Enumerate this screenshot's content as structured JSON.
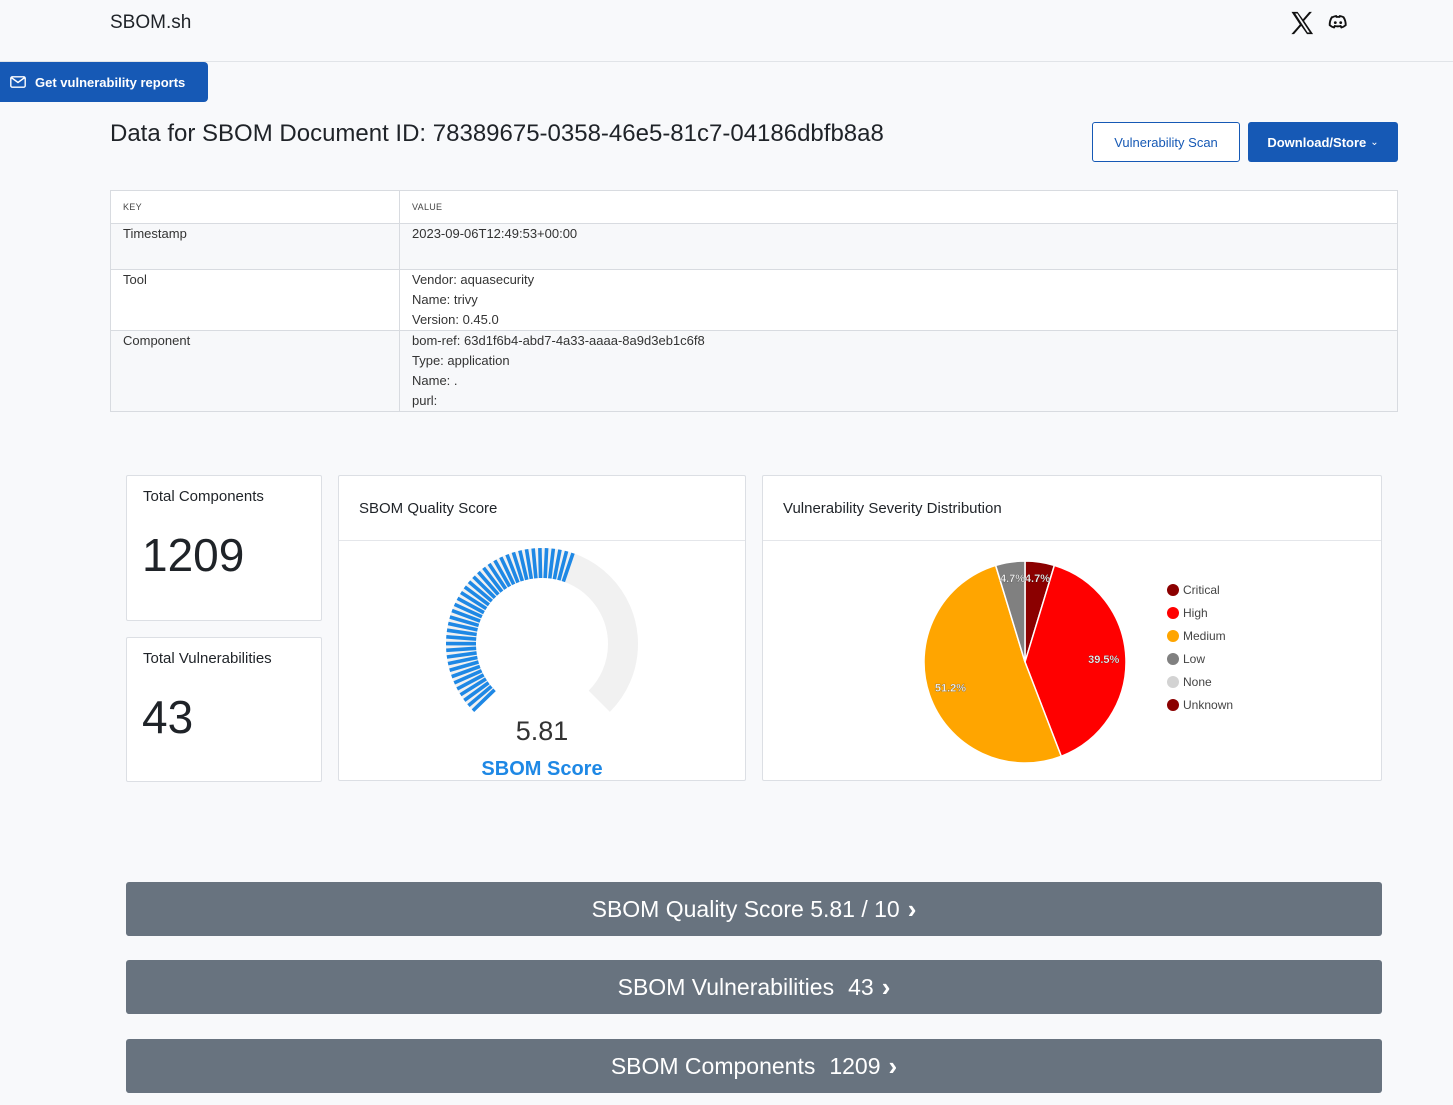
{
  "header": {
    "brand": "SBOM.sh"
  },
  "actions": {
    "get_reports": "Get vulnerability reports",
    "vuln_scan": "Vulnerability Scan",
    "download_store": "Download/Store"
  },
  "page": {
    "title": "Data for SBOM Document ID: 78389675-0358-46e5-81c7-04186dbfb8a8"
  },
  "table": {
    "key_header": "KEY",
    "value_header": "VALUE",
    "rows": [
      {
        "key": "Timestamp",
        "lines": [
          "2023-09-06T12:49:53+00:00"
        ]
      },
      {
        "key": "Tool",
        "lines": [
          "Vendor: aquasecurity",
          "Name: trivy",
          "Version: 0.45.0"
        ]
      },
      {
        "key": "Component",
        "lines": [
          "bom-ref: 63d1f6b4-abd7-4a33-aaaa-8a9d3eb1c6f8",
          "Type: application",
          "Name: .",
          "purl:"
        ]
      }
    ]
  },
  "stats": {
    "components_label": "Total Components",
    "components_value": "1209",
    "vulns_label": "Total Vulnerabilities",
    "vulns_value": "43"
  },
  "quality": {
    "title": "SBOM Quality Score",
    "score": "5.81",
    "score_fraction": 0.581,
    "label": "SBOM Score",
    "accent": "#1e88e5",
    "track": "#f1f1f1"
  },
  "severity": {
    "title": "Vulnerability Severity Distribution",
    "legend": [
      {
        "name": "Critical",
        "color": "#8b0000"
      },
      {
        "name": "High",
        "color": "#ff0000"
      },
      {
        "name": "Medium",
        "color": "#ffa500"
      },
      {
        "name": "Low",
        "color": "#808080"
      },
      {
        "name": "None",
        "color": "#d3d3d3"
      },
      {
        "name": "Unknown",
        "color": "#8b0000"
      }
    ]
  },
  "chart_data": {
    "type": "pie",
    "title": "Vulnerability Severity Distribution",
    "slices": [
      {
        "name": "Critical",
        "value": 4.7,
        "label": "4.7%",
        "color": "#8b0000"
      },
      {
        "name": "High",
        "value": 39.5,
        "label": "39.5%",
        "color": "#ff0000"
      },
      {
        "name": "Medium",
        "value": 51.2,
        "label": "51.2%",
        "color": "#ffa500"
      },
      {
        "name": "Low",
        "value": 4.7,
        "label": "4.7%",
        "color": "#808080"
      }
    ],
    "legend_position": "right"
  },
  "sections": {
    "quality_prefix": "SBOM Quality Score",
    "quality_value": "5.81 / 10",
    "vulns_prefix": "SBOM Vulnerabilities",
    "vulns_value": "43",
    "components_prefix": "SBOM Components",
    "components_value": "1209"
  }
}
